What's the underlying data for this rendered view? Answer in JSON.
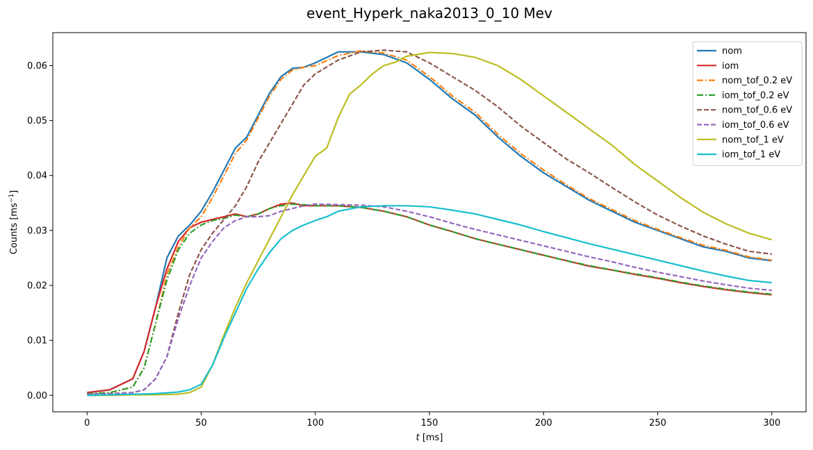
{
  "chart_data": {
    "type": "line",
    "title": "event_Hyperk_naka2013_0_10 Mev",
    "xlabel_italic": "t",
    "xlabel_unit": " [ms]",
    "ylabel_main": "Counts [ms",
    "ylabel_sup": "−1",
    "ylabel_end": "]",
    "xlim": [
      -15,
      315
    ],
    "ylim": [
      -0.003,
      0.066
    ],
    "xticks": [
      0,
      50,
      100,
      150,
      200,
      250,
      300
    ],
    "xtick_labels": [
      "0",
      "50",
      "100",
      "150",
      "200",
      "250",
      "300"
    ],
    "yticks": [
      0.0,
      0.01,
      0.02,
      0.03,
      0.04,
      0.05,
      0.06
    ],
    "ytick_labels": [
      "0.00",
      "0.01",
      "0.02",
      "0.03",
      "0.04",
      "0.05",
      "0.06"
    ],
    "legend_position": "top-right",
    "series": [
      {
        "name": "nom",
        "color": "#1f77b4",
        "dash": "solid",
        "x": [
          0,
          10,
          20,
          25,
          30,
          35,
          40,
          45,
          50,
          55,
          60,
          65,
          70,
          75,
          80,
          85,
          90,
          95,
          100,
          110,
          120,
          130,
          140,
          150,
          160,
          170,
          180,
          190,
          200,
          210,
          220,
          230,
          240,
          250,
          260,
          270,
          280,
          290,
          300
        ],
        "y": [
          0.0005,
          0.001,
          0.003,
          0.008,
          0.016,
          0.025,
          0.029,
          0.031,
          0.0335,
          0.037,
          0.041,
          0.045,
          0.047,
          0.051,
          0.055,
          0.058,
          0.0595,
          0.0597,
          0.0605,
          0.0625,
          0.0625,
          0.062,
          0.0605,
          0.0575,
          0.054,
          0.051,
          0.047,
          0.0435,
          0.0405,
          0.038,
          0.0355,
          0.0335,
          0.0315,
          0.03,
          0.0285,
          0.027,
          0.0262,
          0.025,
          0.0245
        ]
      },
      {
        "name": "iom",
        "color": "#d62728",
        "dash": "solid",
        "x": [
          0,
          10,
          20,
          25,
          30,
          35,
          40,
          45,
          50,
          55,
          60,
          65,
          70,
          75,
          80,
          85,
          90,
          95,
          100,
          110,
          120,
          130,
          140,
          150,
          160,
          170,
          180,
          190,
          200,
          210,
          220,
          230,
          240,
          250,
          260,
          270,
          280,
          290,
          300
        ],
        "y": [
          0.0005,
          0.001,
          0.003,
          0.008,
          0.016,
          0.023,
          0.028,
          0.0305,
          0.0315,
          0.032,
          0.0325,
          0.033,
          0.0325,
          0.033,
          0.034,
          0.0348,
          0.035,
          0.0345,
          0.0345,
          0.0345,
          0.0342,
          0.0335,
          0.0325,
          0.031,
          0.0298,
          0.0285,
          0.0275,
          0.0265,
          0.0255,
          0.0245,
          0.0235,
          0.0228,
          0.022,
          0.0213,
          0.0205,
          0.0198,
          0.0192,
          0.0187,
          0.0183
        ]
      },
      {
        "name": "nom_tof_0.2 eV",
        "color": "#ff7f0e",
        "dash": "dashdot",
        "x": [
          0,
          10,
          20,
          25,
          30,
          35,
          40,
          45,
          50,
          55,
          60,
          65,
          70,
          75,
          80,
          85,
          90,
          95,
          100,
          110,
          120,
          130,
          140,
          150,
          160,
          170,
          180,
          190,
          200,
          210,
          220,
          230,
          240,
          250,
          260,
          270,
          280,
          290,
          300
        ],
        "y": [
          0.0003,
          0.0005,
          0.0015,
          0.005,
          0.013,
          0.022,
          0.027,
          0.0305,
          0.0325,
          0.036,
          0.04,
          0.044,
          0.0465,
          0.0505,
          0.0545,
          0.0575,
          0.0592,
          0.0597,
          0.06,
          0.0618,
          0.0627,
          0.0623,
          0.061,
          0.058,
          0.0545,
          0.0515,
          0.0475,
          0.044,
          0.041,
          0.0383,
          0.0358,
          0.0338,
          0.0318,
          0.0302,
          0.0287,
          0.0273,
          0.0264,
          0.0252,
          0.0246
        ]
      },
      {
        "name": "iom_tof_0.2 eV",
        "color": "#2ca02c",
        "dash": "dashdot",
        "x": [
          0,
          10,
          20,
          25,
          30,
          35,
          40,
          45,
          50,
          55,
          60,
          65,
          70,
          75,
          80,
          85,
          90,
          95,
          100,
          110,
          120,
          130,
          140,
          150,
          160,
          170,
          180,
          190,
          200,
          210,
          220,
          230,
          240,
          250,
          260,
          270,
          280,
          290,
          300
        ],
        "y": [
          0.0003,
          0.0005,
          0.0015,
          0.005,
          0.013,
          0.021,
          0.0265,
          0.0295,
          0.031,
          0.0318,
          0.0322,
          0.0328,
          0.0325,
          0.033,
          0.034,
          0.0345,
          0.0348,
          0.0347,
          0.0345,
          0.0345,
          0.0342,
          0.0335,
          0.0325,
          0.031,
          0.0298,
          0.0285,
          0.0275,
          0.0265,
          0.0255,
          0.0245,
          0.0236,
          0.0228,
          0.0221,
          0.0214,
          0.0206,
          0.0199,
          0.0193,
          0.0188,
          0.0184
        ]
      },
      {
        "name": "nom_tof_0.6 eV",
        "color": "#8c564b",
        "dash": "dashed",
        "x": [
          0,
          10,
          20,
          25,
          30,
          35,
          40,
          45,
          50,
          55,
          60,
          65,
          70,
          75,
          80,
          85,
          90,
          95,
          100,
          110,
          120,
          130,
          140,
          150,
          160,
          170,
          180,
          190,
          200,
          210,
          220,
          230,
          240,
          250,
          260,
          270,
          280,
          290,
          300
        ],
        "y": [
          0.0002,
          0.0003,
          0.0005,
          0.001,
          0.003,
          0.007,
          0.015,
          0.022,
          0.0265,
          0.0295,
          0.032,
          0.0345,
          0.038,
          0.0425,
          0.046,
          0.0495,
          0.053,
          0.0565,
          0.0585,
          0.061,
          0.0625,
          0.0628,
          0.0625,
          0.0605,
          0.058,
          0.0555,
          0.0525,
          0.049,
          0.046,
          0.043,
          0.0405,
          0.0378,
          0.0352,
          0.0328,
          0.0308,
          0.029,
          0.0275,
          0.0262,
          0.0257
        ]
      },
      {
        "name": "iom_tof_0.6 eV",
        "color": "#9467bd",
        "dash": "dashed",
        "x": [
          0,
          10,
          20,
          25,
          30,
          35,
          40,
          45,
          50,
          55,
          60,
          65,
          70,
          75,
          80,
          85,
          90,
          95,
          100,
          110,
          120,
          130,
          140,
          150,
          160,
          170,
          180,
          190,
          200,
          210,
          220,
          230,
          240,
          250,
          260,
          270,
          280,
          290,
          300
        ],
        "y": [
          0.0002,
          0.0003,
          0.0005,
          0.001,
          0.003,
          0.007,
          0.014,
          0.02,
          0.025,
          0.028,
          0.0305,
          0.0318,
          0.0325,
          0.0325,
          0.0327,
          0.0335,
          0.034,
          0.0345,
          0.0348,
          0.0347,
          0.0346,
          0.0343,
          0.0335,
          0.0325,
          0.0313,
          0.0302,
          0.0292,
          0.0282,
          0.0272,
          0.0262,
          0.0252,
          0.0243,
          0.0233,
          0.0224,
          0.0216,
          0.0208,
          0.0201,
          0.0195,
          0.0191
        ]
      },
      {
        "name": "nom_tof_1 eV",
        "color": "#bcbd22",
        "dash": "solid",
        "x": [
          0,
          10,
          20,
          30,
          40,
          45,
          50,
          55,
          60,
          65,
          70,
          75,
          80,
          85,
          90,
          95,
          100,
          105,
          110,
          115,
          120,
          125,
          130,
          135,
          140,
          150,
          160,
          170,
          180,
          190,
          200,
          210,
          220,
          230,
          240,
          250,
          260,
          270,
          280,
          290,
          300
        ],
        "y": [
          0.0,
          0.0,
          0.0001,
          0.0001,
          0.0002,
          0.0005,
          0.0015,
          0.0055,
          0.011,
          0.016,
          0.0205,
          0.0245,
          0.0285,
          0.0325,
          0.0365,
          0.04,
          0.0435,
          0.045,
          0.0505,
          0.0548,
          0.0565,
          0.0585,
          0.06,
          0.0606,
          0.0617,
          0.0624,
          0.0622,
          0.0615,
          0.06,
          0.0575,
          0.0545,
          0.0515,
          0.0485,
          0.0455,
          0.042,
          0.039,
          0.036,
          0.0333,
          0.0312,
          0.0295,
          0.0283
        ]
      },
      {
        "name": "iom_tof_1 eV",
        "color": "#17becf",
        "dash": "solid",
        "x": [
          0,
          10,
          20,
          30,
          40,
          45,
          50,
          55,
          60,
          65,
          70,
          75,
          80,
          85,
          90,
          95,
          100,
          105,
          110,
          120,
          130,
          140,
          150,
          160,
          170,
          180,
          190,
          200,
          210,
          220,
          230,
          240,
          250,
          260,
          270,
          280,
          290,
          300
        ],
        "y": [
          0.0,
          0.0001,
          0.0002,
          0.0003,
          0.0006,
          0.001,
          0.002,
          0.0055,
          0.0105,
          0.015,
          0.0195,
          0.023,
          0.026,
          0.0285,
          0.03,
          0.031,
          0.0318,
          0.0325,
          0.0335,
          0.0343,
          0.0345,
          0.0345,
          0.0343,
          0.0337,
          0.033,
          0.032,
          0.031,
          0.0298,
          0.0287,
          0.0276,
          0.0266,
          0.0256,
          0.0246,
          0.0236,
          0.0226,
          0.0217,
          0.0209,
          0.0205
        ]
      }
    ]
  }
}
